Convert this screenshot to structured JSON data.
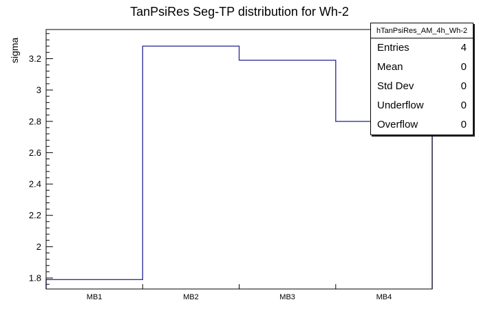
{
  "chart_data": {
    "type": "bar",
    "subtype": "step-histogram",
    "title": "TanPsiRes Seg-TP distribution for Wh-2",
    "xlabel": "",
    "ylabel": "sigma",
    "categories": [
      "MB1",
      "MB2",
      "MB3",
      "MB4"
    ],
    "values": [
      1.79,
      3.28,
      3.19,
      2.8
    ],
    "ylim": [
      1.73,
      3.386
    ],
    "yticks": [
      1.8,
      2,
      2.2,
      2.4,
      2.6,
      2.8,
      3,
      3.2
    ],
    "y_minor_step": 0.04,
    "grid": false,
    "legend_position": "none",
    "line_color": "#33339c",
    "axis_color": "#000000",
    "background_color": "#ffffff"
  },
  "stats_box": {
    "header": "hTanPsiRes_AM_4h_Wh-2",
    "rows": [
      {
        "label": "Entries",
        "value": "4"
      },
      {
        "label": "Mean",
        "value": "0"
      },
      {
        "label": "Std Dev",
        "value": "0"
      },
      {
        "label": "Underflow",
        "value": "0"
      },
      {
        "label": "Overflow",
        "value": "0"
      }
    ]
  }
}
